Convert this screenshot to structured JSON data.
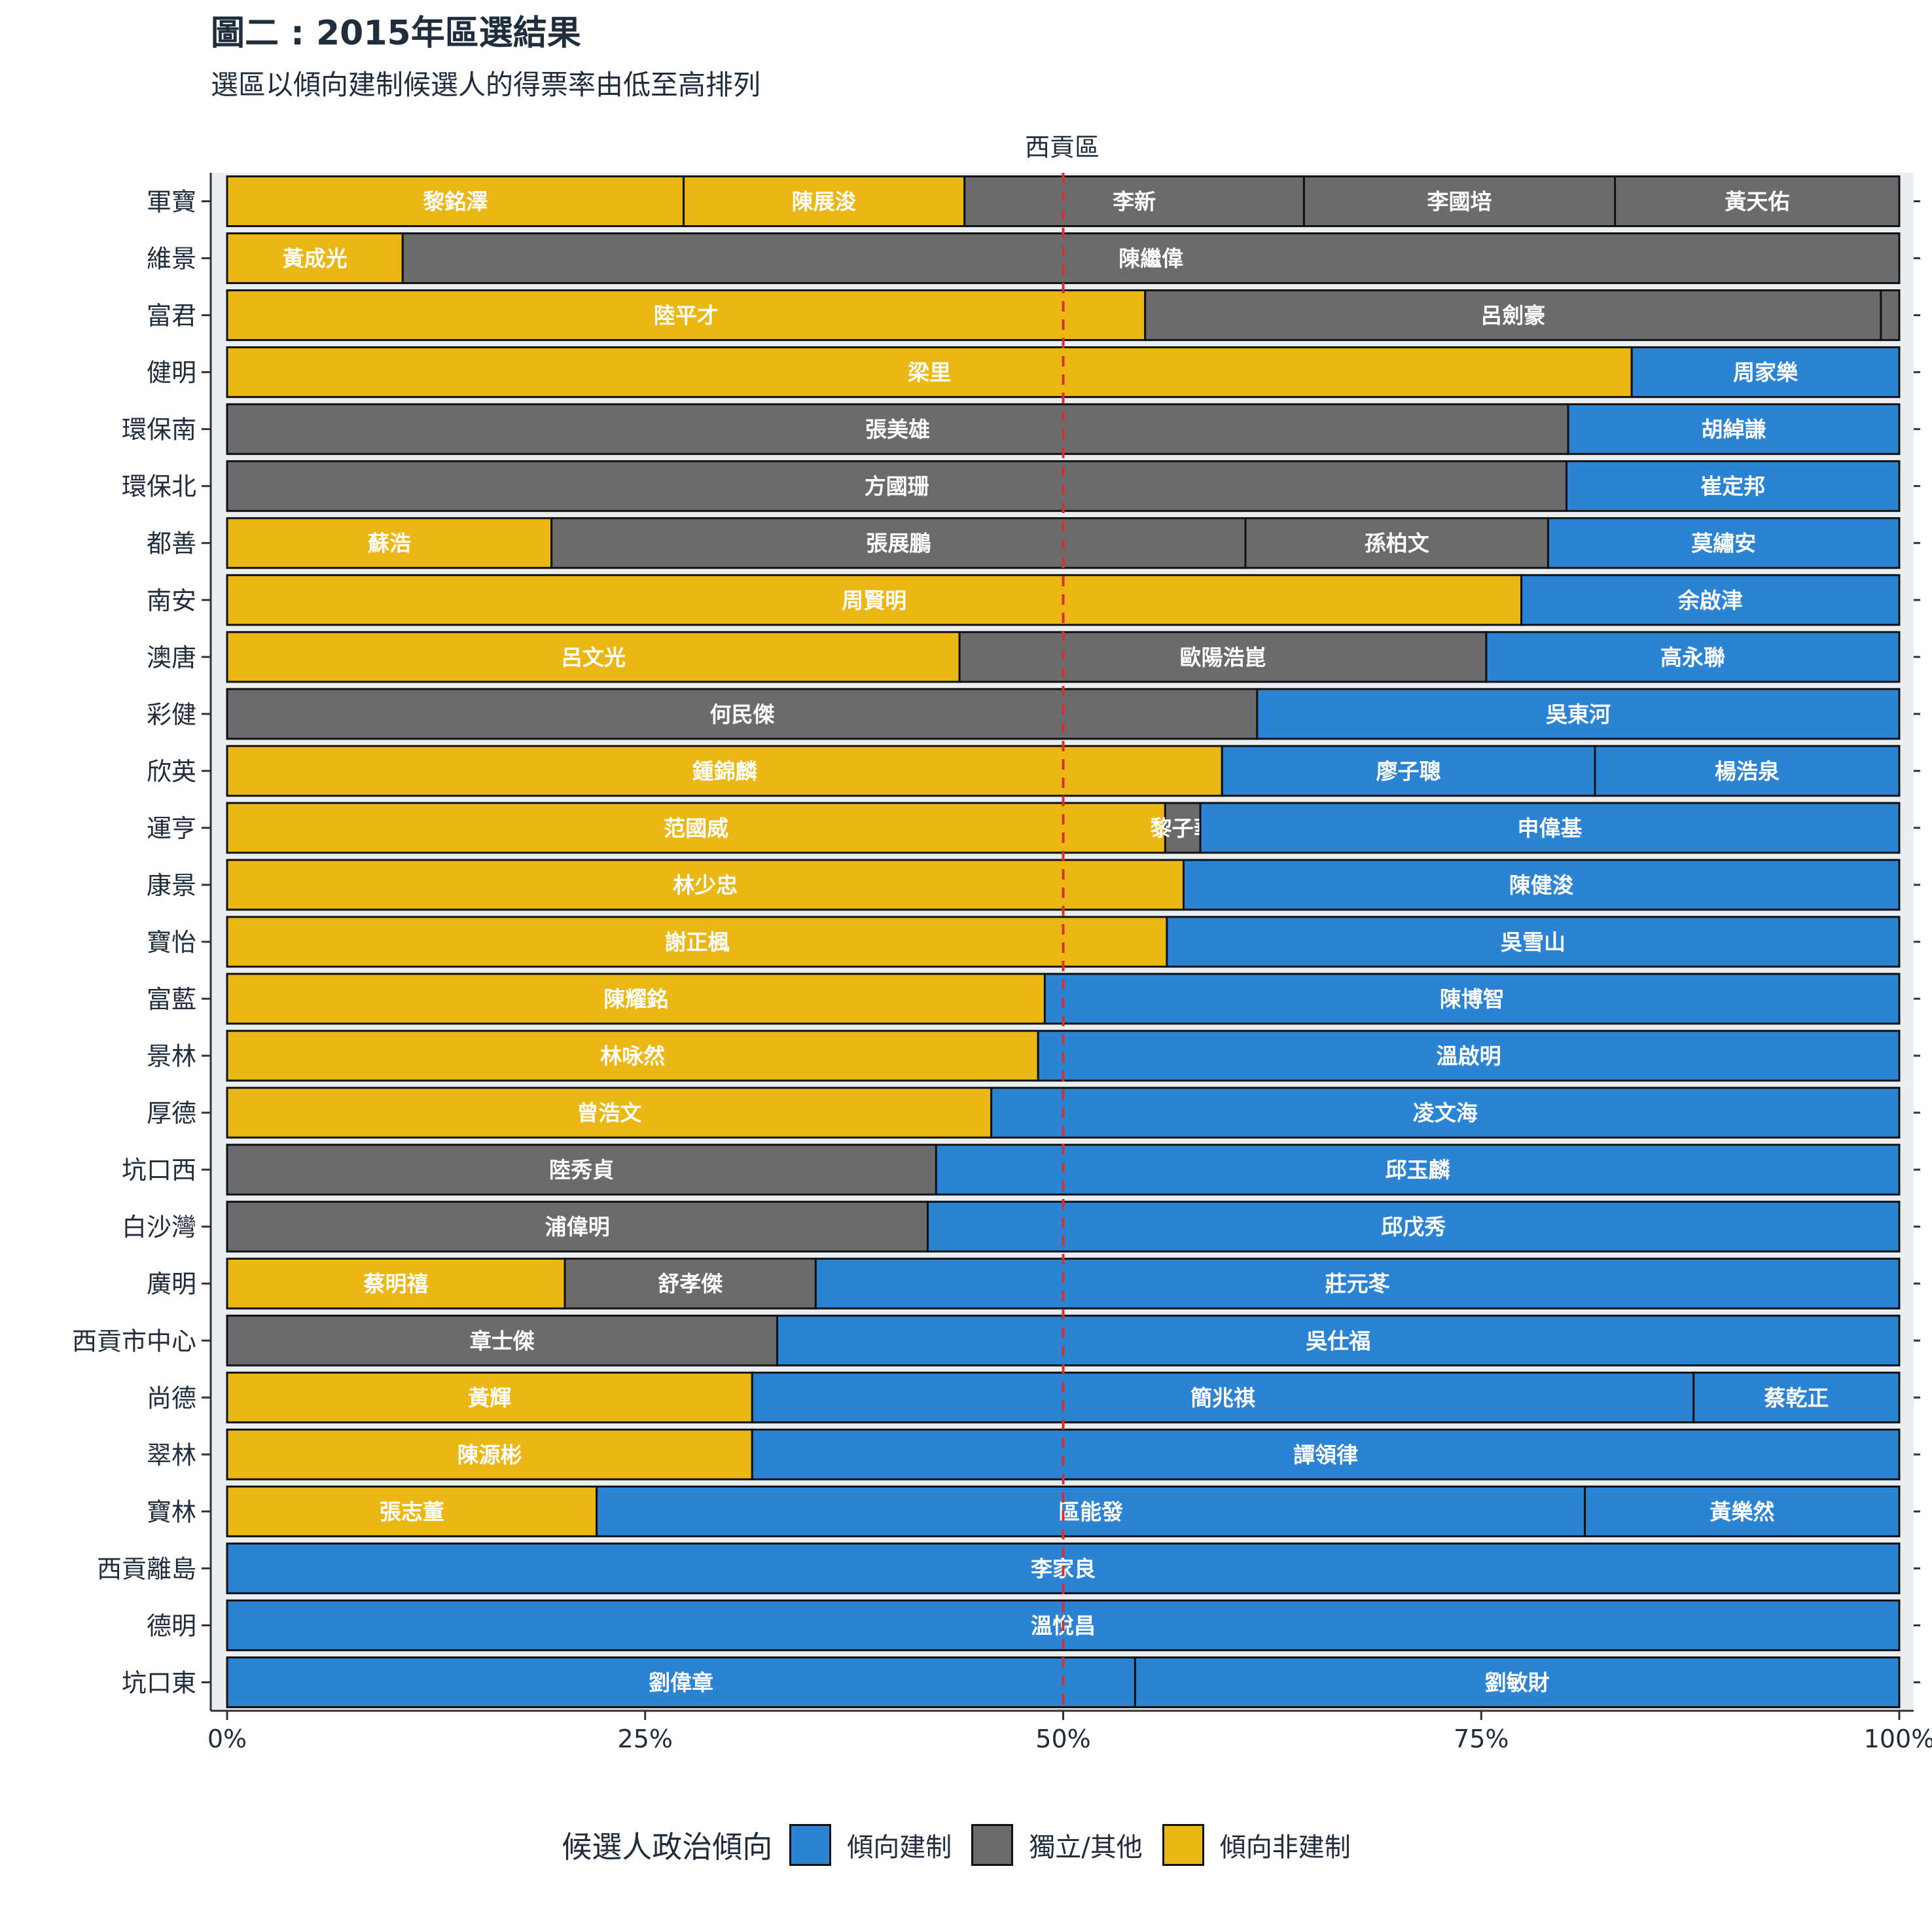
{
  "header": {
    "title": "圖二 : 2015年區選結果",
    "subtitle": "選區以傾向建制候選人的得票率由低至高排列"
  },
  "legend": {
    "title": "候選人政治傾向",
    "items": [
      {
        "key": "pro",
        "label": "傾向建制",
        "color": "#2b83d4"
      },
      {
        "key": "ind",
        "label": "獨立/其他",
        "color": "#6b6b6b"
      },
      {
        "key": "non",
        "label": "傾向非建制",
        "color": "#ebb715"
      }
    ]
  },
  "chart_data": {
    "type": "bar",
    "orientation": "horizontal",
    "stacked": true,
    "facet_label": "西貢區",
    "xlim": [
      0,
      100
    ],
    "x_ticks": [
      "0%",
      "25%",
      "50%",
      "75%",
      "100%"
    ],
    "reference_line": 50,
    "colors": {
      "pro": "#2b83d4",
      "ind": "#6b6b6b",
      "non": "#ebb715"
    },
    "rows": [
      {
        "district": "軍寶",
        "segments": [
          {
            "name": "黎銘澤",
            "value": 27.3,
            "group": "non"
          },
          {
            "name": "陳展浚",
            "value": 16.8,
            "group": "non"
          },
          {
            "name": "李新",
            "value": 20.3,
            "group": "ind"
          },
          {
            "name": "李國培",
            "value": 18.6,
            "group": "ind"
          },
          {
            "name": "黃天佑",
            "value": 17.0,
            "group": "ind"
          }
        ]
      },
      {
        "district": "維景",
        "segments": [
          {
            "name": "黃成光",
            "value": 10.5,
            "group": "non"
          },
          {
            "name": "陳繼偉",
            "value": 89.5,
            "group": "ind"
          }
        ]
      },
      {
        "district": "富君",
        "segments": [
          {
            "name": "陸平才",
            "value": 54.9,
            "group": "non"
          },
          {
            "name": "呂劍豪",
            "value": 44.0,
            "group": "ind"
          },
          {
            "name": "",
            "value": 1.1,
            "group": "ind"
          }
        ]
      },
      {
        "district": "健明",
        "segments": [
          {
            "name": "梁里",
            "value": 84.0,
            "group": "non"
          },
          {
            "name": "周家樂",
            "value": 16.0,
            "group": "pro"
          }
        ]
      },
      {
        "district": "環保南",
        "segments": [
          {
            "name": "張美雄",
            "value": 80.2,
            "group": "ind"
          },
          {
            "name": "胡綽謙",
            "value": 19.8,
            "group": "pro"
          }
        ]
      },
      {
        "district": "環保北",
        "segments": [
          {
            "name": "方國珊",
            "value": 80.1,
            "group": "ind"
          },
          {
            "name": "崔定邦",
            "value": 19.9,
            "group": "pro"
          }
        ]
      },
      {
        "district": "都善",
        "segments": [
          {
            "name": "蘇浩",
            "value": 19.4,
            "group": "non"
          },
          {
            "name": "張展鵬",
            "value": 41.5,
            "group": "ind"
          },
          {
            "name": "孫柏文",
            "value": 18.1,
            "group": "ind"
          },
          {
            "name": "莫繡安",
            "value": 21.0,
            "group": "pro"
          }
        ]
      },
      {
        "district": "南安",
        "segments": [
          {
            "name": "周賢明",
            "value": 77.4,
            "group": "non"
          },
          {
            "name": "余啟津",
            "value": 22.6,
            "group": "pro"
          }
        ]
      },
      {
        "district": "澳唐",
        "segments": [
          {
            "name": "呂文光",
            "value": 43.8,
            "group": "non"
          },
          {
            "name": "歐陽浩崑",
            "value": 31.5,
            "group": "ind"
          },
          {
            "name": "高永聯",
            "value": 24.7,
            "group": "pro"
          }
        ]
      },
      {
        "district": "彩健",
        "segments": [
          {
            "name": "何民傑",
            "value": 61.6,
            "group": "ind"
          },
          {
            "name": "吳東河",
            "value": 38.4,
            "group": "pro"
          }
        ]
      },
      {
        "district": "欣英",
        "segments": [
          {
            "name": "鍾錦麟",
            "value": 59.5,
            "group": "non"
          },
          {
            "name": "廖子聰",
            "value": 22.3,
            "group": "pro"
          },
          {
            "name": "楊浩泉",
            "value": 18.2,
            "group": "pro"
          }
        ]
      },
      {
        "district": "運亨",
        "segments": [
          {
            "name": "范國威",
            "value": 56.1,
            "group": "non"
          },
          {
            "name": "黎子華",
            "value": 2.1,
            "group": "ind"
          },
          {
            "name": "申偉基",
            "value": 41.8,
            "group": "pro"
          }
        ]
      },
      {
        "district": "康景",
        "segments": [
          {
            "name": "林少忠",
            "value": 57.2,
            "group": "non"
          },
          {
            "name": "陳健浚",
            "value": 42.8,
            "group": "pro"
          }
        ]
      },
      {
        "district": "寶怡",
        "segments": [
          {
            "name": "謝正楓",
            "value": 56.2,
            "group": "non"
          },
          {
            "name": "吳雪山",
            "value": 43.8,
            "group": "pro"
          }
        ]
      },
      {
        "district": "富藍",
        "segments": [
          {
            "name": "陳耀銘",
            "value": 48.9,
            "group": "non"
          },
          {
            "name": "陳博智",
            "value": 51.1,
            "group": "pro"
          }
        ]
      },
      {
        "district": "景林",
        "segments": [
          {
            "name": "林咏然",
            "value": 48.5,
            "group": "non"
          },
          {
            "name": "溫啟明",
            "value": 51.5,
            "group": "pro"
          }
        ]
      },
      {
        "district": "厚德",
        "segments": [
          {
            "name": "曾浩文",
            "value": 45.7,
            "group": "non"
          },
          {
            "name": "凌文海",
            "value": 54.3,
            "group": "pro"
          }
        ]
      },
      {
        "district": "坑口西",
        "segments": [
          {
            "name": "陸秀貞",
            "value": 42.4,
            "group": "ind"
          },
          {
            "name": "邱玉麟",
            "value": 57.6,
            "group": "pro"
          }
        ]
      },
      {
        "district": "白沙灣",
        "segments": [
          {
            "name": "浦偉明",
            "value": 41.9,
            "group": "ind"
          },
          {
            "name": "邱戊秀",
            "value": 58.1,
            "group": "pro"
          }
        ]
      },
      {
        "district": "廣明",
        "segments": [
          {
            "name": "蔡明禧",
            "value": 20.2,
            "group": "non"
          },
          {
            "name": "舒孝傑",
            "value": 15.0,
            "group": "ind"
          },
          {
            "name": "莊元苳",
            "value": 64.8,
            "group": "pro"
          }
        ]
      },
      {
        "district": "西貢市中心",
        "segments": [
          {
            "name": "章士傑",
            "value": 32.9,
            "group": "ind"
          },
          {
            "name": "吳仕福",
            "value": 67.1,
            "group": "pro"
          }
        ]
      },
      {
        "district": "尚德",
        "segments": [
          {
            "name": "黃輝",
            "value": 31.4,
            "group": "non"
          },
          {
            "name": "簡兆祺",
            "value": 56.3,
            "group": "pro"
          },
          {
            "name": "蔡乾正",
            "value": 12.3,
            "group": "pro"
          }
        ]
      },
      {
        "district": "翠林",
        "segments": [
          {
            "name": "陳源彬",
            "value": 31.4,
            "group": "non"
          },
          {
            "name": "譚領律",
            "value": 68.6,
            "group": "pro"
          }
        ]
      },
      {
        "district": "寶林",
        "segments": [
          {
            "name": "張志董",
            "value": 22.1,
            "group": "non"
          },
          {
            "name": "區能發",
            "value": 59.1,
            "group": "pro"
          },
          {
            "name": "黃樂然",
            "value": 18.8,
            "group": "pro"
          }
        ]
      },
      {
        "district": "西貢離島",
        "segments": [
          {
            "name": "李家良",
            "value": 100,
            "group": "pro"
          }
        ]
      },
      {
        "district": "德明",
        "segments": [
          {
            "name": "溫悅昌",
            "value": 100,
            "group": "pro"
          }
        ]
      },
      {
        "district": "坑口東",
        "segments": [
          {
            "name": "劉偉章",
            "value": 54.3,
            "group": "pro"
          },
          {
            "name": "劉敏財",
            "value": 45.7,
            "group": "pro"
          }
        ]
      }
    ]
  }
}
